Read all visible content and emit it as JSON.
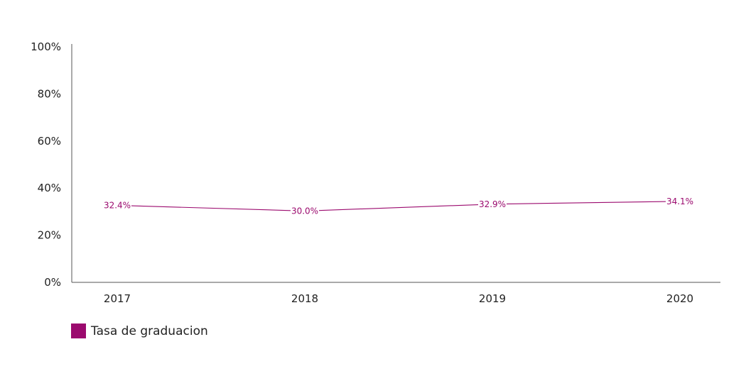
{
  "chart_data": {
    "type": "line",
    "x": [
      "2017",
      "2018",
      "2019",
      "2020"
    ],
    "series": [
      {
        "name": "Tasa de graduacion",
        "values": [
          32.4,
          30.0,
          32.9,
          34.1
        ],
        "labels": [
          "32.4%",
          "30.0%",
          "32.9%",
          "34.1%"
        ],
        "color": "#9b0a6e"
      }
    ],
    "ylim": [
      0,
      100
    ],
    "yticks": [
      0,
      20,
      40,
      60,
      80,
      100
    ],
    "ytick_labels": [
      "0%",
      "20%",
      "40%",
      "60%",
      "80%",
      "100%"
    ],
    "grid": false,
    "legend_position": "bottom-left"
  },
  "legend": {
    "label": "Tasa de graduacion",
    "color": "#9b0a6e"
  }
}
